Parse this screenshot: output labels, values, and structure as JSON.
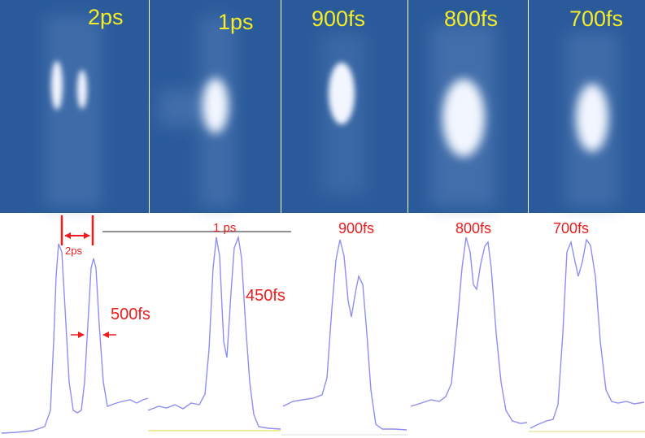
{
  "colors": {
    "panel_bg": "#2a5a9a",
    "streak": "#f2f6ff",
    "label_yellow": "#f5ec28",
    "label_red": "#ee1c1c",
    "trace": "#8e8ff0",
    "baseline_yellow": "#f0ec9a",
    "rule_gray": "#6b6b6b"
  },
  "panels": [
    {
      "label": "2ps"
    },
    {
      "label": "1ps"
    },
    {
      "label": "900fs"
    },
    {
      "label": "800fs"
    },
    {
      "label": "700fs"
    }
  ],
  "traces": [
    {
      "separation_label": "2ps",
      "width_label": "500fs"
    },
    {
      "separation_label": "1 ps",
      "width_label": "450fs"
    },
    {
      "separation_label": "900fs"
    },
    {
      "separation_label": "800fs"
    },
    {
      "separation_label": "700fs"
    }
  ]
}
